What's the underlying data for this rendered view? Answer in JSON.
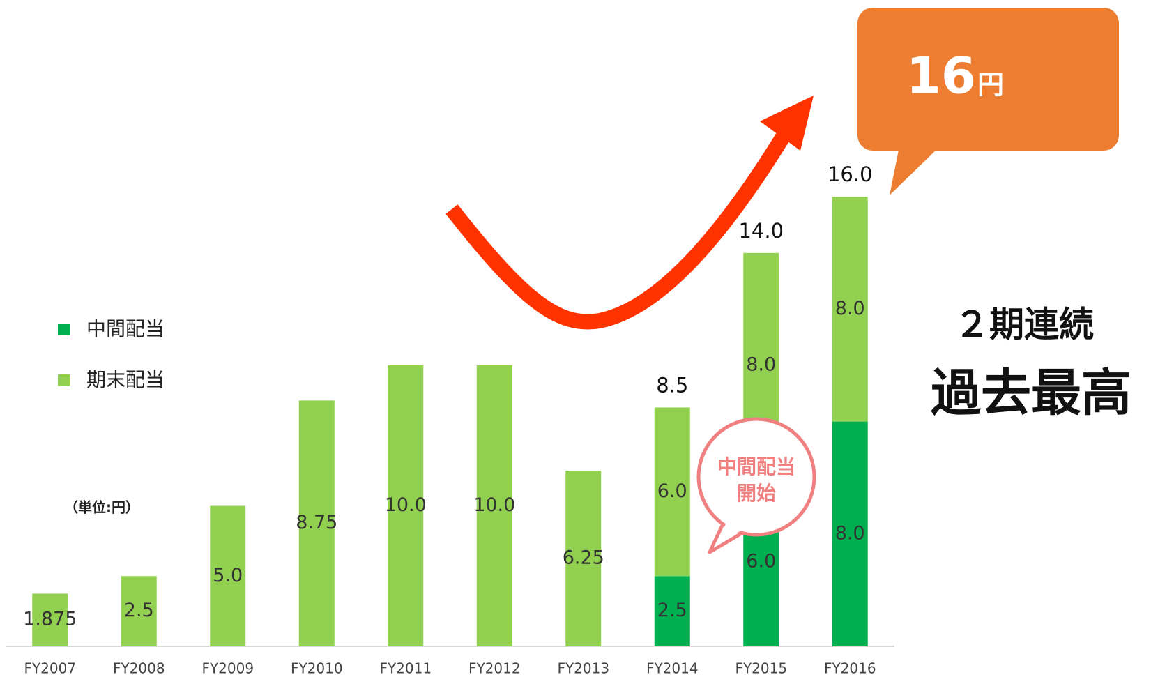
{
  "chart_data": {
    "type": "stacked_bar",
    "categories": [
      "FY2007",
      "FY2008",
      "FY2009",
      "FY2010",
      "FY2011",
      "FY2012",
      "FY2013",
      "FY2014",
      "FY2015",
      "FY2016"
    ],
    "series": [
      {
        "name": "中間配当",
        "color": "#00b050",
        "values": [
          null,
          null,
          null,
          null,
          null,
          null,
          null,
          2.5,
          6.0,
          8.0
        ],
        "value_labels": [
          null,
          null,
          null,
          null,
          null,
          null,
          null,
          "2.5",
          "6.0",
          "8.0"
        ]
      },
      {
        "name": "期末配当",
        "color": "#92d050",
        "values": [
          1.875,
          2.5,
          5.0,
          8.75,
          10.0,
          10.0,
          6.25,
          6.0,
          8.0,
          8.0
        ],
        "value_labels": [
          "1.875",
          "2.5",
          "5.0",
          "8.75",
          "10.0",
          "10.0",
          "6.25",
          "6.0",
          "8.0",
          "8.0"
        ]
      }
    ],
    "totals": [
      null,
      null,
      null,
      null,
      null,
      null,
      null,
      8.5,
      14.0,
      16.0
    ],
    "total_labels": [
      null,
      null,
      null,
      null,
      null,
      null,
      null,
      "8.5",
      "14.0",
      "16.0"
    ],
    "ylim": [
      0,
      20
    ],
    "unit_note": "（単位:円）",
    "callout_value": "16",
    "callout_unit": "円",
    "bubble_lines": [
      "中間配当",
      "開始"
    ],
    "headline_lines": [
      "２期連続",
      "過去最高"
    ]
  }
}
